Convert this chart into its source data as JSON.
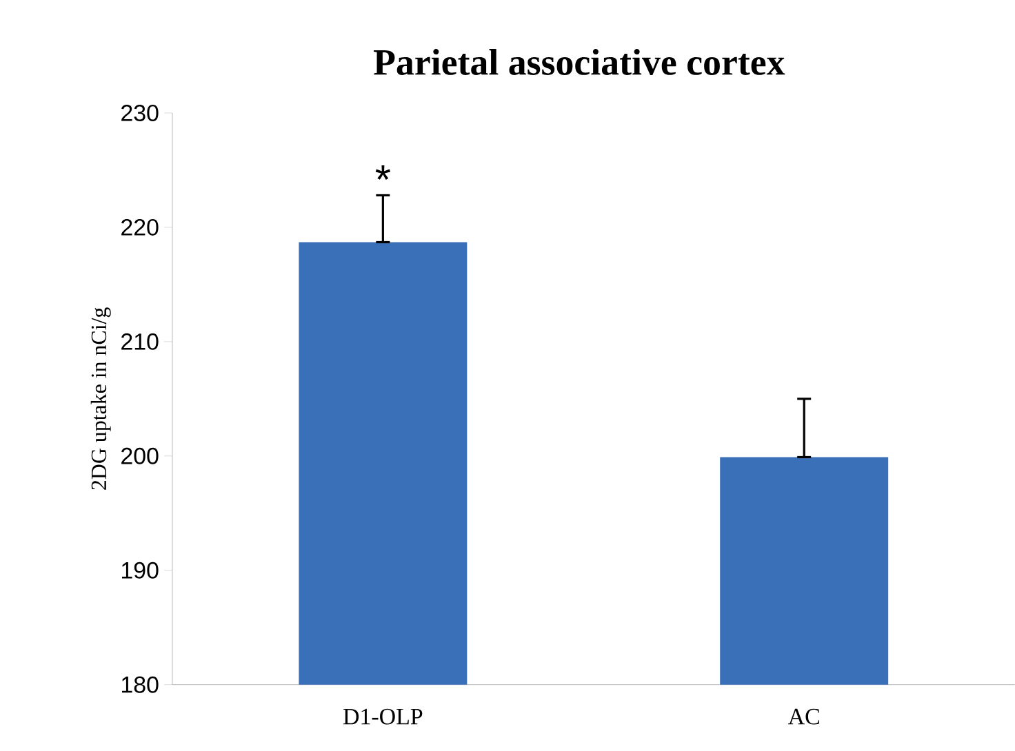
{
  "chart_data": {
    "type": "bar",
    "title": "Parietal associative cortex",
    "ylabel": "2DG uptake in nCi/g",
    "categories": [
      "D1-OLP",
      "AC"
    ],
    "values": [
      218.7,
      199.9
    ],
    "errors": [
      [
        218.7,
        222.8
      ],
      [
        199.9,
        205.0
      ]
    ],
    "color": "#3a70b8",
    "ylim": [
      180,
      230
    ],
    "yticks": [
      180,
      190,
      200,
      210,
      220,
      230
    ],
    "annotations": [
      "*"
    ]
  }
}
